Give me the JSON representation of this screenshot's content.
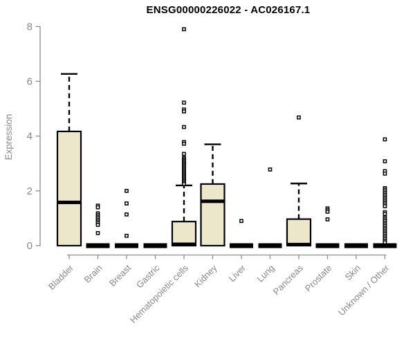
{
  "chart_data": {
    "type": "boxplot",
    "title": "ENSG00000226022 - AC026167.1",
    "ylabel": "Expression",
    "xlabel": "",
    "ylim": [
      0,
      8
    ],
    "y_ticks": [
      "0",
      "2",
      "4",
      "6",
      "8"
    ],
    "grid": false,
    "legend": "none",
    "categories": [
      "Bladder",
      "Brain",
      "Breast",
      "Gastric",
      "Hematopoietic cells",
      "Kidney",
      "Liver",
      "Lung",
      "Pancreas",
      "Prostate",
      "Skin",
      "Unknown / Other"
    ],
    "series": [
      {
        "category": "Bladder",
        "q1": 0,
        "median": 1.58,
        "q3": 4.17,
        "whisker_low": 0,
        "whisker_high": 6.27,
        "outliers": []
      },
      {
        "category": "Brain",
        "q1": 0,
        "median": 0,
        "q3": 0,
        "whisker_low": 0,
        "whisker_high": 0,
        "outliers": [
          1.46,
          1.4,
          1.18,
          1.12,
          1.06,
          1.0,
          0.94,
          0.88,
          0.82,
          0.76,
          0.46
        ]
      },
      {
        "category": "Breast",
        "q1": 0,
        "median": 0,
        "q3": 0,
        "whisker_low": 0,
        "whisker_high": 0,
        "outliers": [
          2.0,
          1.54,
          1.14,
          0.36
        ]
      },
      {
        "category": "Gastric",
        "q1": 0,
        "median": 0,
        "q3": 0,
        "whisker_low": 0,
        "whisker_high": 0,
        "outliers": []
      },
      {
        "category": "Hematopoietic cells",
        "q1": 0,
        "median": 0.05,
        "q3": 0.88,
        "whisker_low": 0,
        "whisker_high": 2.2,
        "outliers": [
          7.9,
          5.22,
          4.97,
          4.9,
          4.33,
          3.78,
          3.72,
          3.35,
          3.2,
          3.15,
          3.1,
          3.05,
          3.0,
          2.95,
          2.9,
          2.85,
          2.8,
          2.75,
          2.7,
          2.65,
          2.6,
          2.55,
          2.5,
          2.45,
          2.4,
          2.35,
          2.3,
          2.25
        ]
      },
      {
        "category": "Kidney",
        "q1": 0,
        "median": 1.62,
        "q3": 2.25,
        "whisker_low": 0,
        "whisker_high": 3.7,
        "outliers": []
      },
      {
        "category": "Liver",
        "q1": 0,
        "median": 0,
        "q3": 0,
        "whisker_low": 0,
        "whisker_high": 0,
        "outliers": [
          0.9
        ]
      },
      {
        "category": "Lung",
        "q1": 0,
        "median": 0,
        "q3": 0,
        "whisker_low": 0,
        "whisker_high": 0,
        "outliers": [
          2.78
        ]
      },
      {
        "category": "Pancreas",
        "q1": 0,
        "median": 0.04,
        "q3": 0.97,
        "whisker_low": 0,
        "whisker_high": 2.27,
        "outliers": [
          4.68
        ]
      },
      {
        "category": "Prostate",
        "q1": 0,
        "median": 0,
        "q3": 0,
        "whisker_low": 0,
        "whisker_high": 0,
        "outliers": [
          1.36,
          1.3,
          1.24,
          0.96
        ]
      },
      {
        "category": "Skin",
        "q1": 0,
        "median": 0,
        "q3": 0,
        "whisker_low": 0,
        "whisker_high": 0,
        "outliers": []
      },
      {
        "category": "Unknown / Other",
        "q1": 0,
        "median": 0,
        "q3": 0,
        "whisker_low": 0,
        "whisker_high": 0,
        "outliers": [
          3.88,
          3.08,
          2.72,
          2.63,
          2.1,
          2.04,
          1.98,
          1.92,
          1.86,
          1.8,
          1.74,
          1.68,
          1.62,
          1.56,
          1.5,
          1.44,
          1.22,
          1.16,
          1.02,
          0.96,
          0.9,
          0.84,
          0.78,
          0.72,
          0.66,
          0.6,
          0.54,
          0.48,
          0.42,
          0.36,
          0.3,
          0.24,
          0.18,
          0.12
        ]
      }
    ],
    "colors": {
      "box_fill": "#ECE6CA",
      "box_stroke": "#000000",
      "median": "#000000",
      "whisker": "#000000",
      "outlier_stroke": "#000000",
      "axis": "#8C8C8C",
      "tick_label": "#888888",
      "title": "#000000",
      "background": "#FFFFFF"
    }
  }
}
